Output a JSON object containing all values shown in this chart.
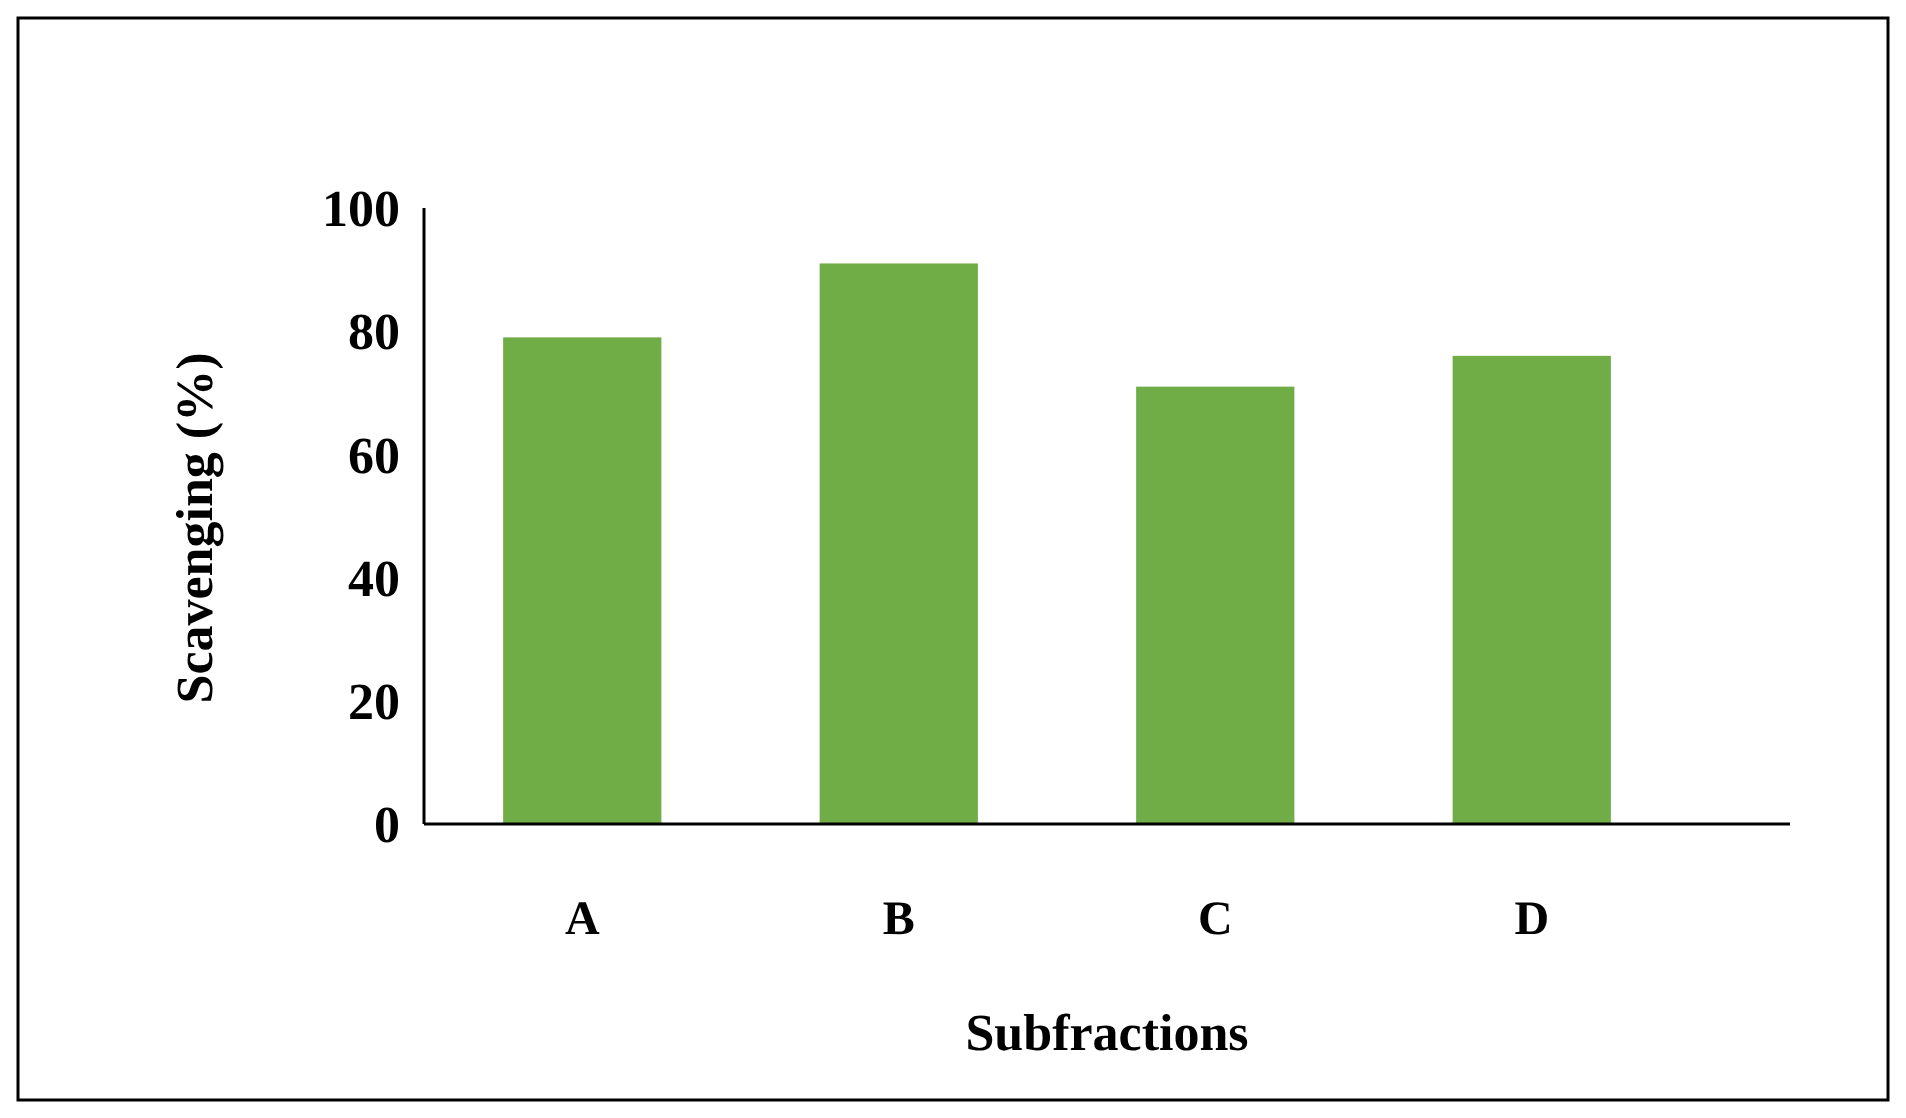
{
  "chart_data": {
    "type": "bar",
    "xlabel": "Subfractions",
    "ylabel": "Scavenging (%)",
    "categories": [
      "A",
      "B",
      "C",
      "D"
    ],
    "values": [
      79,
      91,
      71,
      76
    ],
    "color": "#70ad47",
    "ylim": [
      0,
      100
    ],
    "yticks": [
      0,
      20,
      40,
      60,
      80,
      100
    ],
    "grid": false
  }
}
